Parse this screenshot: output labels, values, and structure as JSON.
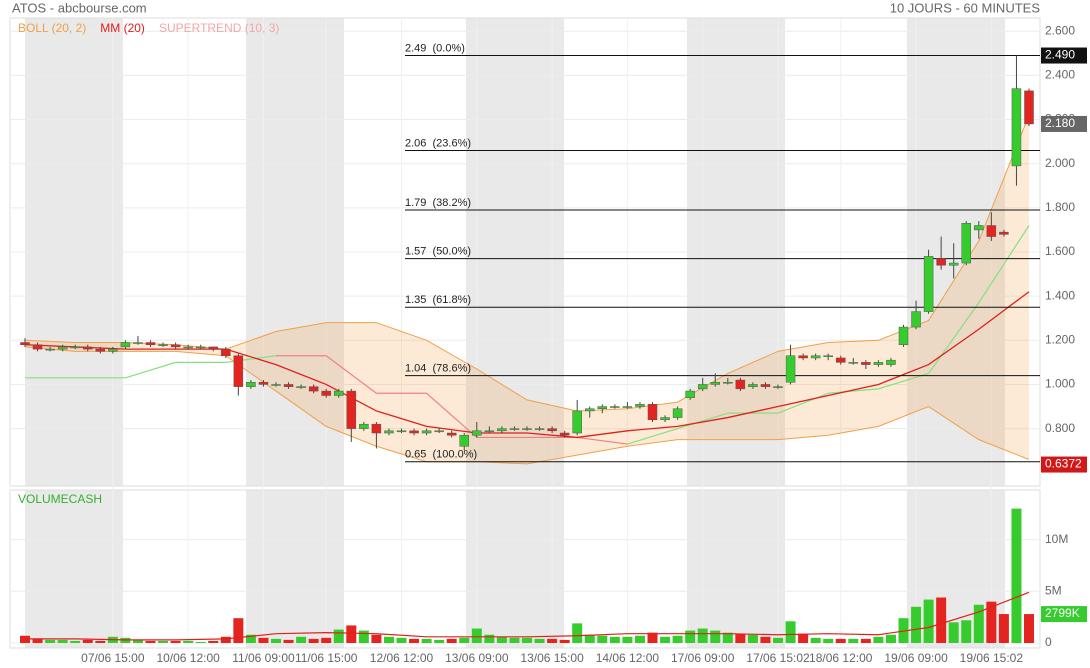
{
  "chart_data": {
    "type": "candlestick",
    "title": "ATOS - abcbourse.com",
    "subtitle": "10 JOURS - 60 MINUTES",
    "up_color": "#36cc2e",
    "down_color": "#e42420",
    "ylim": [
      0.54,
      2.66
    ],
    "yticks": [
      {
        "value": 0.8,
        "label": "0.800"
      },
      {
        "value": 1.0,
        "label": "1.000"
      },
      {
        "value": 1.2,
        "label": "1.200"
      },
      {
        "value": 1.4,
        "label": "1.400"
      },
      {
        "value": 1.6,
        "label": "1.600"
      },
      {
        "value": 1.8,
        "label": "1.800"
      },
      {
        "value": 2.0,
        "label": "2.000"
      },
      {
        "value": 2.2,
        "label": "2.200"
      },
      {
        "value": 2.4,
        "label": "2.400"
      },
      {
        "value": 2.6,
        "label": "2.600"
      }
    ],
    "grid": true,
    "categories": [
      null,
      null,
      null,
      null,
      null,
      null,
      null,
      "07/06 15:00",
      null,
      null,
      null,
      null,
      null,
      "10/06 12:00",
      null,
      null,
      null,
      null,
      null,
      "11/06 09:00",
      null,
      null,
      null,
      null,
      "11/06 15:00",
      null,
      null,
      null,
      null,
      null,
      "12/06 12:00",
      null,
      null,
      null,
      null,
      null,
      "13/06 09:00",
      null,
      null,
      null,
      null,
      null,
      "13/06 15:00",
      null,
      null,
      null,
      null,
      null,
      "14/06 12:00",
      null,
      null,
      null,
      null,
      null,
      "17/06 09:00",
      null,
      null,
      null,
      null,
      null,
      "17/06 15:02",
      null,
      null,
      null,
      null,
      "18/06 12:00",
      null,
      null,
      null,
      null,
      null,
      "19/06 09:00",
      null,
      null,
      null,
      null,
      null,
      "19/06 15:02",
      null,
      null,
      null
    ],
    "ohlc": [
      [
        1.19,
        1.21,
        1.17,
        1.18
      ],
      [
        1.18,
        1.19,
        1.15,
        1.16
      ],
      [
        1.16,
        1.17,
        1.15,
        1.16
      ],
      [
        1.16,
        1.18,
        1.15,
        1.17
      ],
      [
        1.17,
        1.18,
        1.16,
        1.17
      ],
      [
        1.17,
        1.18,
        1.15,
        1.16
      ],
      [
        1.16,
        1.17,
        1.14,
        1.15
      ],
      [
        1.15,
        1.17,
        1.14,
        1.16
      ],
      [
        1.17,
        1.2,
        1.16,
        1.19
      ],
      [
        1.19,
        1.22,
        1.18,
        1.19
      ],
      [
        1.19,
        1.2,
        1.17,
        1.18
      ],
      [
        1.18,
        1.19,
        1.17,
        1.18
      ],
      [
        1.18,
        1.19,
        1.16,
        1.17
      ],
      [
        1.17,
        1.18,
        1.16,
        1.17
      ],
      [
        1.17,
        1.18,
        1.16,
        1.17
      ],
      [
        1.17,
        1.17,
        1.15,
        1.16
      ],
      [
        1.16,
        1.17,
        1.12,
        1.13
      ],
      [
        1.13,
        1.14,
        0.95,
        0.99
      ],
      [
        0.99,
        1.02,
        0.98,
        1.01
      ],
      [
        1.01,
        1.02,
        0.99,
        1.0
      ],
      [
        1.0,
        1.01,
        0.99,
        1.0
      ],
      [
        1.0,
        1.01,
        0.98,
        0.99
      ],
      [
        0.99,
        1.0,
        0.98,
        0.99
      ],
      [
        0.99,
        1.0,
        0.96,
        0.97
      ],
      [
        0.97,
        0.98,
        0.94,
        0.95
      ],
      [
        0.95,
        0.98,
        0.94,
        0.97
      ],
      [
        0.97,
        0.98,
        0.74,
        0.8
      ],
      [
        0.8,
        0.83,
        0.79,
        0.82
      ],
      [
        0.82,
        0.83,
        0.71,
        0.78
      ],
      [
        0.78,
        0.8,
        0.77,
        0.79
      ],
      [
        0.79,
        0.8,
        0.78,
        0.79
      ],
      [
        0.79,
        0.8,
        0.77,
        0.78
      ],
      [
        0.78,
        0.8,
        0.77,
        0.79
      ],
      [
        0.79,
        0.8,
        0.78,
        0.79
      ],
      [
        0.78,
        0.79,
        0.76,
        0.77
      ],
      [
        0.72,
        0.78,
        0.7,
        0.77
      ],
      [
        0.77,
        0.83,
        0.76,
        0.79
      ],
      [
        0.79,
        0.81,
        0.78,
        0.79
      ],
      [
        0.79,
        0.81,
        0.78,
        0.8
      ],
      [
        0.8,
        0.81,
        0.79,
        0.8
      ],
      [
        0.8,
        0.81,
        0.79,
        0.8
      ],
      [
        0.8,
        0.81,
        0.79,
        0.8
      ],
      [
        0.8,
        0.81,
        0.78,
        0.79
      ],
      [
        0.78,
        0.79,
        0.76,
        0.77
      ],
      [
        0.78,
        0.93,
        0.77,
        0.88
      ],
      [
        0.88,
        0.9,
        0.85,
        0.89
      ],
      [
        0.89,
        0.91,
        0.87,
        0.9
      ],
      [
        0.9,
        0.91,
        0.89,
        0.9
      ],
      [
        0.9,
        0.92,
        0.89,
        0.9
      ],
      [
        0.9,
        0.92,
        0.89,
        0.91
      ],
      [
        0.91,
        0.92,
        0.83,
        0.84
      ],
      [
        0.84,
        0.86,
        0.83,
        0.85
      ],
      [
        0.85,
        0.9,
        0.84,
        0.89
      ],
      [
        0.94,
        0.98,
        0.93,
        0.97
      ],
      [
        0.98,
        1.03,
        0.97,
        1.0
      ],
      [
        1.0,
        1.05,
        0.99,
        1.01
      ],
      [
        1.01,
        1.03,
        1.0,
        1.01
      ],
      [
        1.02,
        1.03,
        0.97,
        0.98
      ],
      [
        0.99,
        1.01,
        0.98,
        1.0
      ],
      [
        1.0,
        1.01,
        0.98,
        0.99
      ],
      [
        0.99,
        1.0,
        0.98,
        0.99
      ],
      [
        1.01,
        1.18,
        1.0,
        1.13
      ],
      [
        1.13,
        1.14,
        1.11,
        1.12
      ],
      [
        1.12,
        1.14,
        1.11,
        1.13
      ],
      [
        1.13,
        1.14,
        1.11,
        1.13
      ],
      [
        1.12,
        1.13,
        1.09,
        1.1
      ],
      [
        1.1,
        1.12,
        1.09,
        1.1
      ],
      [
        1.1,
        1.11,
        1.07,
        1.09
      ],
      [
        1.09,
        1.11,
        1.08,
        1.1
      ],
      [
        1.09,
        1.12,
        1.08,
        1.11
      ],
      [
        1.18,
        1.27,
        1.17,
        1.26
      ],
      [
        1.26,
        1.38,
        1.25,
        1.33
      ],
      [
        1.33,
        1.61,
        1.32,
        1.58
      ],
      [
        1.57,
        1.67,
        1.52,
        1.54
      ],
      [
        1.54,
        1.64,
        1.48,
        1.55
      ],
      [
        1.55,
        1.74,
        1.54,
        1.73
      ],
      [
        1.7,
        1.74,
        1.66,
        1.72
      ],
      [
        1.72,
        1.78,
        1.65,
        1.67
      ],
      [
        1.69,
        1.7,
        1.67,
        1.68
      ],
      [
        1.99,
        2.49,
        1.9,
        2.34
      ],
      [
        2.33,
        2.34,
        2.17,
        2.18
      ]
    ],
    "bollinger": {
      "name": "BOLL (20, 2)",
      "color": "#f0a048",
      "x": [
        0,
        4,
        8,
        12,
        16,
        20,
        24,
        28,
        32,
        36,
        40,
        44,
        48,
        52,
        56,
        60,
        64,
        68,
        72,
        76,
        80
      ],
      "upper": [
        1.2,
        1.19,
        1.19,
        1.18,
        1.16,
        1.24,
        1.28,
        1.28,
        1.2,
        1.07,
        0.93,
        0.88,
        0.89,
        0.92,
        1.05,
        1.15,
        1.19,
        1.2,
        1.29,
        1.65,
        2.22
      ],
      "lower": [
        1.17,
        1.15,
        1.15,
        1.15,
        1.13,
        0.97,
        0.81,
        0.72,
        0.65,
        0.65,
        0.64,
        0.68,
        0.72,
        0.75,
        0.75,
        0.75,
        0.77,
        0.81,
        0.9,
        0.75,
        0.66
      ]
    },
    "moving_average": {
      "name": "MM (20)",
      "color": "#e0201c",
      "x": [
        0,
        4,
        8,
        12,
        16,
        20,
        24,
        28,
        32,
        36,
        40,
        44,
        48,
        52,
        56,
        60,
        64,
        68,
        72,
        76,
        80
      ],
      "values": [
        1.18,
        1.17,
        1.16,
        1.16,
        1.16,
        1.09,
        1.0,
        0.88,
        0.81,
        0.78,
        0.78,
        0.76,
        0.79,
        0.81,
        0.85,
        0.9,
        0.95,
        1.0,
        1.09,
        1.25,
        1.42
      ]
    },
    "supertrend": {
      "name": "SUPERTREND (10, 3)",
      "color": "#f4a6a6",
      "x": [
        0,
        4,
        8,
        12,
        16,
        20,
        24,
        28,
        32,
        36,
        40,
        44,
        48,
        52,
        56,
        60,
        64,
        68,
        72,
        76,
        80
      ],
      "values": [
        1.03,
        1.03,
        1.03,
        1.1,
        1.1,
        1.13,
        1.13,
        0.96,
        0.96,
        0.76,
        0.76,
        0.76,
        0.73,
        0.8,
        0.87,
        0.87,
        0.96,
        0.98,
        1.05,
        1.37,
        1.72
      ],
      "colors": [
        "#86e07e",
        "#86e07e",
        "#86e07e",
        "#86e07e",
        "#86e07e",
        "#f08080",
        "#f08080",
        "#f08080",
        "#f08080",
        "#f08080",
        "#f08080",
        "#f08080",
        "#86e07e",
        "#86e07e",
        "#86e07e",
        "#86e07e",
        "#86e07e",
        "#86e07e",
        "#86e07e",
        "#86e07e",
        "#86e07e"
      ]
    },
    "fibonacci": [
      {
        "value": 2.49,
        "label": "2.49  (0.0%)"
      },
      {
        "value": 2.06,
        "label": "2.06  (23.6%)"
      },
      {
        "value": 1.79,
        "label": "1.79  (38.2%)"
      },
      {
        "value": 1.57,
        "label": "1.57  (50.0%)"
      },
      {
        "value": 1.35,
        "label": "1.35  (61.8%)"
      },
      {
        "value": 1.04,
        "label": "1.04  (78.6%)"
      },
      {
        "value": 0.65,
        "label": "0.65  (100.0%)"
      }
    ],
    "price_tags": [
      {
        "value": 2.49,
        "label": "2.490",
        "color": "#111111"
      },
      {
        "value": 2.18,
        "label": "2.180",
        "color": "#666666"
      },
      {
        "value": 0.6372,
        "label": "0.6372",
        "color": "#d01818"
      }
    ],
    "volume": {
      "title": "VOLUMECASH",
      "ylim": [
        0,
        14.8
      ],
      "yticks": [
        0,
        {
          "value": 5,
          "label": "5M"
        },
        {
          "value": 10,
          "label": "10M"
        }
      ],
      "values": [
        0.7,
        0.4,
        0.3,
        0.3,
        0.2,
        0.3,
        0.2,
        0.6,
        0.5,
        0.3,
        0.2,
        0.2,
        0.2,
        0.2,
        0.1,
        0.2,
        0.6,
        2.4,
        0.8,
        0.5,
        0.4,
        0.3,
        0.6,
        0.4,
        0.5,
        1.3,
        1.7,
        1.2,
        0.8,
        0.6,
        0.5,
        0.4,
        0.4,
        0.3,
        0.4,
        0.5,
        1.4,
        0.8,
        0.6,
        0.5,
        0.5,
        0.4,
        0.4,
        0.3,
        1.9,
        0.8,
        0.7,
        0.6,
        0.6,
        0.7,
        1.0,
        0.6,
        0.7,
        1.2,
        1.4,
        1.2,
        1.0,
        0.9,
        0.8,
        0.6,
        0.5,
        2.1,
        0.9,
        0.5,
        0.4,
        0.4,
        0.4,
        0.4,
        0.6,
        0.8,
        2.4,
        3.5,
        4.2,
        4.4,
        2.0,
        2.2,
        3.7,
        4.0,
        2.8,
        13.0,
        2.8
      ],
      "last_tag": {
        "value": 2.799,
        "label": "2799K",
        "color": "#36cc2e"
      },
      "average": {
        "color": "#e0201c",
        "x": [
          0,
          4,
          8,
          12,
          16,
          20,
          24,
          28,
          32,
          36,
          40,
          44,
          48,
          52,
          56,
          60,
          64,
          68,
          72,
          76,
          80
        ],
        "values": [
          0.4,
          0.4,
          0.3,
          0.3,
          0.4,
          0.9,
          1.0,
          0.9,
          0.6,
          0.6,
          0.6,
          0.7,
          0.9,
          0.9,
          0.9,
          0.8,
          0.9,
          0.8,
          1.5,
          3.0,
          4.9
        ]
      }
    }
  }
}
